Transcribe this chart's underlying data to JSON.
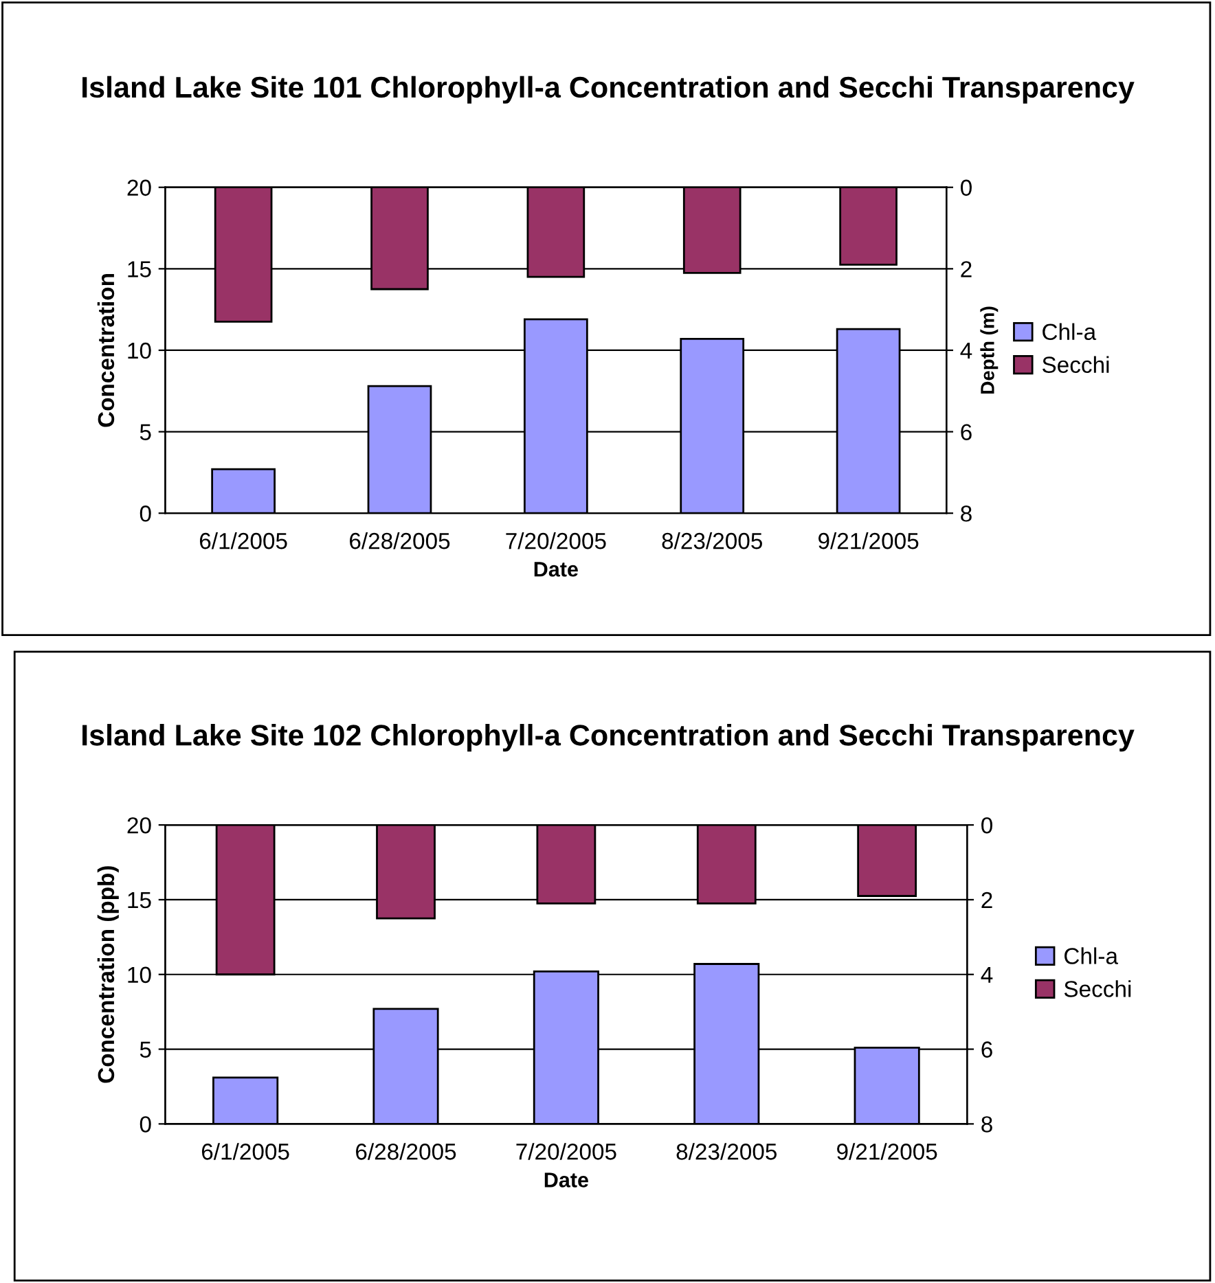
{
  "chart_data": [
    {
      "type": "bar",
      "title": "Island Lake Site 101 Chlorophyll-a Concentration and Secchi Transparency",
      "xlabel": "Date",
      "ylabel": "Concentration",
      "y2label": "Depth (m)",
      "categories": [
        "6/1/2005",
        "6/28/2005",
        "7/20/2005",
        "8/23/2005",
        "9/21/2005"
      ],
      "series": [
        {
          "name": "Chl-a",
          "color": "#9999ff",
          "values": [
            2.7,
            7.8,
            11.9,
            10.7,
            11.3
          ]
        },
        {
          "name": "Secchi",
          "color": "#993366",
          "axis": "y2",
          "values": [
            3.3,
            2.5,
            2.2,
            2.1,
            1.9
          ]
        }
      ],
      "ylim": [
        0,
        20
      ],
      "yticks": [
        0,
        5,
        10,
        15,
        20
      ],
      "y2lim": [
        8,
        0
      ],
      "y2ticks": [
        0,
        2,
        4,
        6,
        8
      ],
      "grid": "y",
      "legend": "right"
    },
    {
      "type": "bar",
      "title": "Island Lake Site 102 Chlorophyll-a Concentration and Secchi Transparency",
      "xlabel": "Date",
      "ylabel": "Concentration (ppb)",
      "categories": [
        "6/1/2005",
        "6/28/2005",
        "7/20/2005",
        "8/23/2005",
        "9/21/2005"
      ],
      "series": [
        {
          "name": "Chl-a",
          "color": "#9999ff",
          "values": [
            3.1,
            7.7,
            10.2,
            10.7,
            5.1
          ]
        },
        {
          "name": "Secchi",
          "color": "#993366",
          "axis": "y2",
          "values": [
            4.0,
            2.5,
            2.1,
            2.1,
            1.9
          ]
        }
      ],
      "ylim": [
        0,
        20
      ],
      "yticks": [
        0,
        5,
        10,
        15,
        20
      ],
      "y2lim": [
        8,
        0
      ],
      "y2ticks": [
        0,
        2,
        4,
        6,
        8
      ],
      "grid": "y",
      "legend": "right"
    }
  ]
}
